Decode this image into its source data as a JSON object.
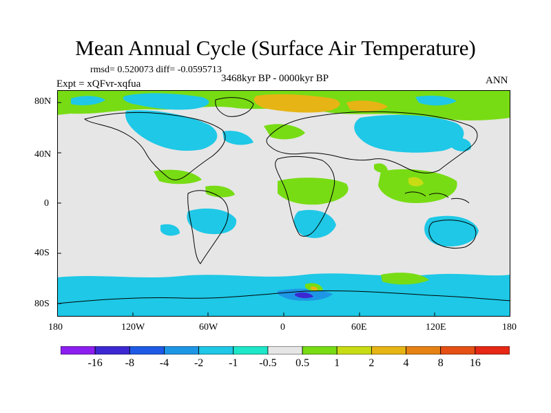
{
  "figure": {
    "title": "Mean Annual Cycle (Surface Air Temperature)",
    "stats": "rmsd= 0.520073 diff= -0.0595713",
    "period": "3468kyr BP - 0000kyr BP",
    "experiment": "Expt = xQFvr-xqfua",
    "season": "ANN"
  },
  "axes": {
    "lat_ticks": [
      "80N",
      "40N",
      "0",
      "40S",
      "80S"
    ],
    "lon_ticks": [
      "180",
      "120W",
      "60W",
      "0",
      "60E",
      "120E",
      "180"
    ]
  },
  "colorbar": {
    "labels": [
      "-16",
      "-8",
      "-4",
      "-2",
      "-1",
      "-0.5",
      "0.5",
      "1",
      "2",
      "4",
      "8",
      "16"
    ],
    "colors": [
      "#8c1ef0",
      "#3c28d2",
      "#1e5ae6",
      "#1e96e6",
      "#1ec8e6",
      "#1ee6c8",
      "#e6e6e6",
      "#78dc14",
      "#c8dc14",
      "#e6b414",
      "#e68214",
      "#e65014",
      "#e62814"
    ]
  },
  "colors": {
    "ocean_neutral": "#e6e6e6",
    "coastline": "#000000"
  }
}
